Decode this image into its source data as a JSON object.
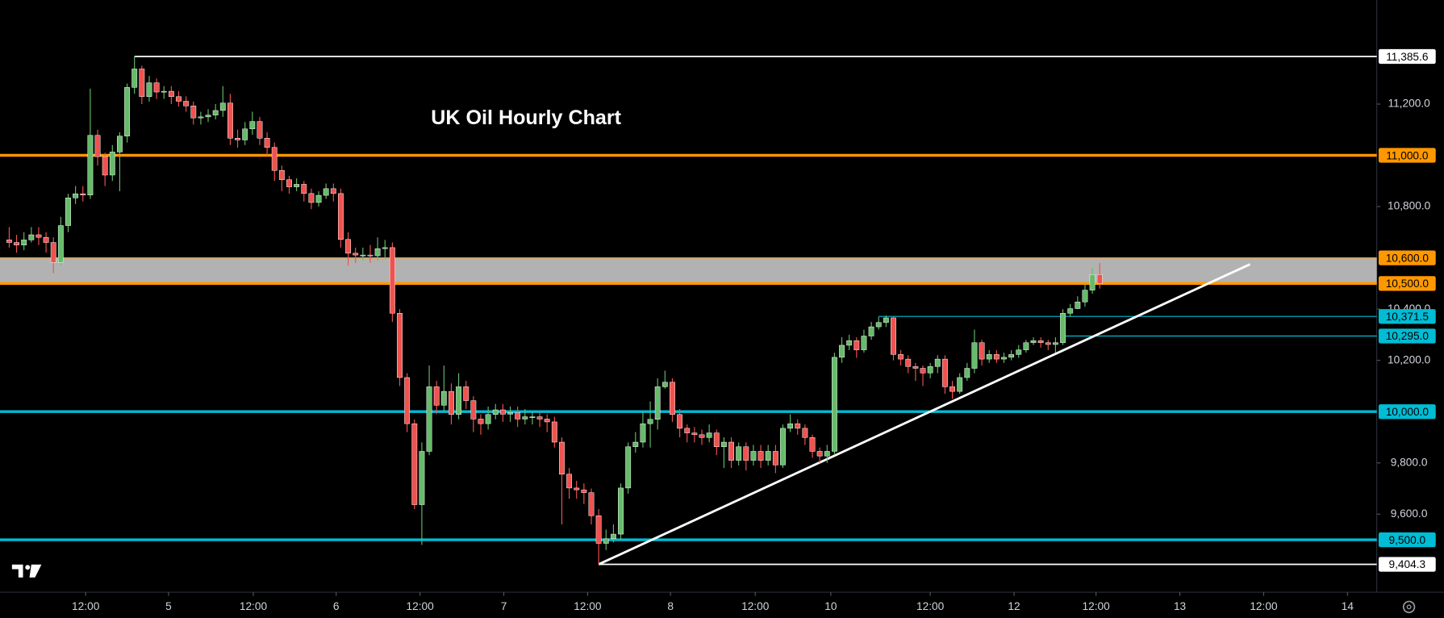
{
  "chart_data": {
    "type": "candlestick",
    "title": "UK Oil Hourly Chart",
    "up_color": "#66bb6a",
    "down_color": "#ef5350",
    "open": [
      10670,
      10660,
      10650,
      10670,
      10690,
      10680,
      10660,
      10582,
      10726,
      10834,
      10850,
      10845,
      11078,
      10995,
      10923,
      11013,
      11075,
      11265,
      11337,
      11229,
      11283,
      11247,
      11250,
      11229,
      11211,
      11193,
      11146,
      11150,
      11157,
      11175,
      11204,
      11067,
      11060,
      11103,
      11132,
      11067,
      11031,
      10941,
      10905,
      10877,
      10887,
      10851,
      10816,
      10844,
      10870,
      10851,
      10672,
      10618,
      10611,
      10611,
      10608,
      10636,
      10640,
      10384,
      10133,
      9953,
      9637,
      9845,
      10097,
      10025,
      10079,
      9989,
      10097,
      10043,
      9971,
      9953,
      9989,
      10007,
      9990,
      9996,
      9971,
      9980,
      9980,
      9971,
      9960,
      9881,
      9756,
      9702,
      9695,
      9684,
      9594,
      9486,
      9504,
      9522,
      9702,
      9863,
      9881,
      9953,
      9970,
      10097,
      10115,
      9989,
      9935,
      9917,
      9910,
      9899,
      9917,
      9863,
      9881,
      9810,
      9863,
      9810,
      9845,
      9810,
      9845,
      9792,
      9935,
      9953,
      9935,
      9899,
      9845,
      9827,
      9845,
      10212,
      10259,
      10277,
      10241,
      10295,
      10331,
      10348,
      10366,
      10223,
      10205,
      10176,
      10169,
      10151,
      10176,
      10205,
      10097,
      10079,
      10133,
      10169,
      10269,
      10205,
      10223,
      10205,
      10212,
      10223,
      10241,
      10269,
      10277,
      10269,
      10262,
      10269,
      10384,
      10402,
      10428,
      10474,
      10535
    ],
    "high": [
      10720,
      10690,
      10700,
      10720,
      10720,
      10700,
      10680,
      10760,
      10850,
      10880,
      10880,
      11260,
      11100,
      11010,
      11040,
      11090,
      11280,
      11386,
      11350,
      11310,
      11300,
      11270,
      11270,
      11250,
      11230,
      11210,
      11170,
      11180,
      11200,
      11270,
      11240,
      11100,
      11130,
      11170,
      11150,
      11090,
      11050,
      10960,
      10920,
      10910,
      10900,
      10870,
      10860,
      10890,
      10890,
      10870,
      10700,
      10640,
      10640,
      10650,
      10680,
      10670,
      10660,
      10400,
      10150,
      9970,
      9880,
      10180,
      10120,
      10180,
      10110,
      10150,
      10120,
      10060,
      9990,
      10020,
      10030,
      10030,
      10020,
      10020,
      10010,
      10000,
      10000,
      9990,
      9980,
      9900,
      9780,
      9730,
      9720,
      9700,
      9620,
      9540,
      9560,
      9720,
      9880,
      9920,
      10000,
      10040,
      10130,
      10160,
      10130,
      10010,
      9950,
      9940,
      9930,
      9950,
      9930,
      9900,
      9900,
      9880,
      9880,
      9870,
      9870,
      9870,
      9870,
      9950,
      9990,
      9970,
      9950,
      9910,
      9860,
      9870,
      10230,
      10290,
      10300,
      10290,
      10320,
      10350,
      10370,
      10375,
      10370,
      10240,
      10220,
      10190,
      10180,
      10190,
      10220,
      10220,
      10120,
      10150,
      10190,
      10320,
      10280,
      10240,
      10240,
      10230,
      10240,
      10260,
      10280,
      10290,
      10290,
      10280,
      10290,
      10400,
      10420,
      10450,
      10500,
      10560,
      10580
    ],
    "low": [
      10640,
      10620,
      10630,
      10660,
      10650,
      10620,
      10540,
      10570,
      10700,
      10810,
      10820,
      10830,
      10960,
      10880,
      10900,
      10860,
      11050,
      11240,
      11200,
      11210,
      11220,
      11220,
      11200,
      11190,
      11170,
      11120,
      11120,
      11130,
      11140,
      11150,
      11040,
      11030,
      11040,
      11080,
      11040,
      11000,
      10900,
      10860,
      10850,
      10860,
      10820,
      10790,
      10800,
      10830,
      10820,
      10640,
      10570,
      10580,
      10590,
      10580,
      10590,
      10600,
      10350,
      10100,
      9920,
      9620,
      9480,
      9830,
      9990,
      10000,
      9950,
      9970,
      10010,
      9920,
      9910,
      9930,
      9970,
      9960,
      9960,
      9940,
      9950,
      9950,
      9940,
      9920,
      9860,
      9560,
      9660,
      9660,
      9640,
      9560,
      9404,
      9460,
      9490,
      9500,
      9680,
      9840,
      9860,
      9860,
      9930,
      10090,
      9960,
      9900,
      9880,
      9880,
      9870,
      9880,
      9830,
      9780,
      9780,
      9790,
      9770,
      9790,
      9780,
      9790,
      9760,
      9780,
      9920,
      9910,
      9870,
      9820,
      9800,
      9800,
      9830,
      10190,
      10240,
      10210,
      10230,
      10280,
      10320,
      10330,
      10200,
      10180,
      10150,
      10120,
      10100,
      10130,
      10150,
      10070,
      10050,
      10070,
      10120,
      10150,
      10180,
      10190,
      10190,
      10190,
      10200,
      10210,
      10230,
      10260,
      10250,
      10240,
      10230,
      10260,
      10370,
      10400,
      10410,
      10460,
      10480
    ],
    "close": [
      10660,
      10650,
      10670,
      10690,
      10680,
      10660,
      10582,
      10726,
      10834,
      10850,
      10845,
      11078,
      10995,
      10923,
      11013,
      11075,
      11265,
      11337,
      11229,
      11283,
      11247,
      11250,
      11229,
      11211,
      11193,
      11146,
      11150,
      11157,
      11175,
      11204,
      11067,
      11060,
      11103,
      11132,
      11067,
      11031,
      10941,
      10905,
      10877,
      10887,
      10851,
      10816,
      10844,
      10870,
      10851,
      10672,
      10618,
      10611,
      10611,
      10608,
      10636,
      10640,
      10384,
      10133,
      9953,
      9637,
      9845,
      10097,
      10025,
      10079,
      9989,
      10097,
      10043,
      9971,
      9953,
      9989,
      10007,
      9990,
      9996,
      9971,
      9980,
      9980,
      9971,
      9960,
      9881,
      9756,
      9702,
      9695,
      9684,
      9594,
      9486,
      9504,
      9522,
      9702,
      9863,
      9881,
      9953,
      9970,
      10097,
      10115,
      9989,
      9935,
      9917,
      9910,
      9899,
      9917,
      9863,
      9881,
      9810,
      9863,
      9810,
      9845,
      9810,
      9845,
      9792,
      9935,
      9953,
      9935,
      9899,
      9845,
      9827,
      9845,
      10212,
      10259,
      10277,
      10241,
      10295,
      10331,
      10348,
      10366,
      10223,
      10205,
      10176,
      10169,
      10151,
      10176,
      10205,
      10097,
      10079,
      10133,
      10169,
      10269,
      10205,
      10223,
      10205,
      10212,
      10223,
      10241,
      10269,
      10277,
      10269,
      10262,
      10269,
      10384,
      10402,
      10428,
      10474,
      10535,
      10499
    ],
    "xlim": [
      -1.25,
      185.6
    ],
    "xticks": [
      {
        "value": 10.375,
        "label": "12:00"
      },
      {
        "value": 21.625,
        "label": "5"
      },
      {
        "value": 33.125,
        "label": "12:00"
      },
      {
        "value": 44.375,
        "label": "6"
      },
      {
        "value": 55.75,
        "label": "12:00"
      },
      {
        "value": 67.125,
        "label": "7"
      },
      {
        "value": 78.5,
        "label": "12:00"
      },
      {
        "value": 89.75,
        "label": "8"
      },
      {
        "value": 101.25,
        "label": "12:00"
      },
      {
        "value": 111.5,
        "label": "10"
      },
      {
        "value": 125,
        "label": "12:00"
      },
      {
        "value": 136.375,
        "label": "12"
      },
      {
        "value": 147.5,
        "label": "12:00"
      },
      {
        "value": 158.875,
        "label": "13"
      },
      {
        "value": 170.25,
        "label": "12:00"
      },
      {
        "value": 181.625,
        "label": "14"
      }
    ],
    "ylim": [
      9295.5,
      11606
    ],
    "yticks": [
      {
        "value": 9600,
        "label": "9,600.0"
      },
      {
        "value": 9800,
        "label": "9,800.0"
      },
      {
        "value": 10200,
        "label": "10,200.0"
      },
      {
        "value": 10400,
        "label": "10,400.0"
      },
      {
        "value": 10800,
        "label": "10,800.0"
      },
      {
        "value": 11200,
        "label": "11,200.0"
      }
    ],
    "zone": {
      "low": 10500,
      "high": 10600,
      "color": "#b2b2b2"
    },
    "levels": [
      {
        "value": 11385.6,
        "label": "11,385.6",
        "color": "#ffffff",
        "width": 1.5,
        "x_start": 17
      },
      {
        "value": 11000,
        "label": "11,000.0",
        "color": "#ff9800",
        "width": 3
      },
      {
        "value": 10600,
        "label": "10,600.0",
        "color": "#ff9800",
        "width": 1
      },
      {
        "value": 10500,
        "label": "10,500.0",
        "color": "#ff9800",
        "width": 3
      },
      {
        "value": 10371.5,
        "label": "10,371.5",
        "color": "#00bcd4",
        "width": 1,
        "x_start": 118
      },
      {
        "value": 10295,
        "label": "10,295.0",
        "color": "#00bcd4",
        "width": 1,
        "x_start": 143
      },
      {
        "value": 10000,
        "label": "10,000.0",
        "color": "#00bcd4",
        "width": 3
      },
      {
        "value": 9500,
        "label": "9,500.0",
        "color": "#00bcd4",
        "width": 3
      },
      {
        "value": 9404.3,
        "label": "9,404.3",
        "color": "#ffffff",
        "width": 1.5,
        "x_start": 80
      }
    ],
    "trendline": {
      "x": [
        80,
        168.4
      ],
      "y": [
        9404.3,
        10575
      ],
      "color": "#ffffff"
    }
  }
}
